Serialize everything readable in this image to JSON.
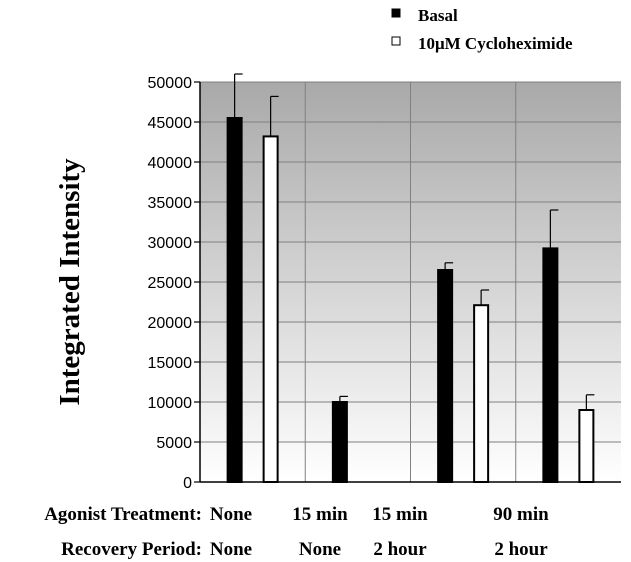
{
  "chart_data": {
    "type": "bar",
    "ylabel": "Integrated Intensity",
    "ylim": [
      0,
      50000
    ],
    "yticks": [
      0,
      5000,
      10000,
      15000,
      20000,
      25000,
      30000,
      35000,
      40000,
      45000,
      50000
    ],
    "grid": true,
    "legend_position": "top-right",
    "row_labels": [
      "Agonist Treatment:",
      "Recovery Period:"
    ],
    "categories": [
      {
        "agonist": "None",
        "recovery": "None"
      },
      {
        "agonist": "15 min",
        "recovery": "None"
      },
      {
        "agonist": "15 min",
        "recovery": "2 hour"
      },
      {
        "agonist": "90 min",
        "recovery": "2 hour"
      }
    ],
    "series": [
      {
        "name": "Basal",
        "color": "#000000",
        "values": [
          45500,
          10000,
          26500,
          29200
        ],
        "errors": [
          5500,
          700,
          900,
          4800
        ]
      },
      {
        "name": "10μM Cycloheximide",
        "color": "#ffffff",
        "values": [
          43200,
          null,
          22100,
          9000
        ],
        "errors": [
          5000,
          null,
          1900,
          1900
        ]
      }
    ]
  }
}
